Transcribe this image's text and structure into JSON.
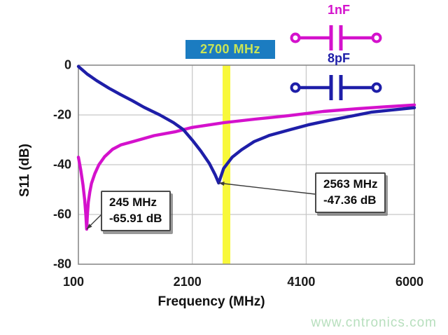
{
  "chart_data": {
    "type": "line",
    "xlabel": "Frequency (MHz)",
    "ylabel": "S11 (dB)",
    "xlim": [
      100,
      6000
    ],
    "ylim": [
      -80,
      0
    ],
    "x_ticks": [
      100,
      2100,
      4100,
      6000
    ],
    "y_ticks": [
      0,
      -20,
      -40,
      -60,
      -80
    ],
    "x_gridlines": [
      2100,
      4100
    ],
    "y_gridlines": [
      -20,
      -40,
      -60
    ],
    "grid_color": "#c6c6c6",
    "frame_color": "#8a8a8a",
    "marker_line": {
      "mhz": 2700,
      "color": "#f8f83a"
    },
    "series": [
      {
        "name": "1nF",
        "color": "#d411cc",
        "points": [
          [
            100,
            -37
          ],
          [
            140,
            -42
          ],
          [
            180,
            -48
          ],
          [
            210,
            -54
          ],
          [
            230,
            -60
          ],
          [
            245,
            -65.91
          ],
          [
            258,
            -60
          ],
          [
            275,
            -55
          ],
          [
            300,
            -51
          ],
          [
            330,
            -47.5
          ],
          [
            390,
            -43.5
          ],
          [
            460,
            -40
          ],
          [
            560,
            -36.8
          ],
          [
            700,
            -33.8
          ],
          [
            850,
            -32
          ],
          [
            1059,
            -30.7
          ],
          [
            1430,
            -28.3
          ],
          [
            1796,
            -26.8
          ],
          [
            2100,
            -25
          ],
          [
            2657,
            -23.1
          ],
          [
            3200,
            -21.7
          ],
          [
            3786,
            -20.3
          ],
          [
            4400,
            -18.6
          ],
          [
            5000,
            -17.5
          ],
          [
            5500,
            -16.7
          ],
          [
            6000,
            -16
          ]
        ]
      },
      {
        "name": "8pF",
        "color": "#1e1ea8",
        "points": [
          [
            100,
            -0.5
          ],
          [
            250,
            -3.5
          ],
          [
            420,
            -6.2
          ],
          [
            640,
            -9.3
          ],
          [
            840,
            -11.8
          ],
          [
            1050,
            -14.3
          ],
          [
            1250,
            -16.9
          ],
          [
            1530,
            -20
          ],
          [
            1770,
            -23.1
          ],
          [
            1943,
            -25.9
          ],
          [
            2100,
            -30.1
          ],
          [
            2250,
            -34.5
          ],
          [
            2400,
            -39.5
          ],
          [
            2500,
            -44
          ],
          [
            2563,
            -47.36
          ],
          [
            2650,
            -41.5
          ],
          [
            2800,
            -37
          ],
          [
            2965,
            -34
          ],
          [
            3186,
            -30.7
          ],
          [
            3456,
            -28.2
          ],
          [
            3825,
            -25.9
          ],
          [
            4132,
            -24
          ],
          [
            4500,
            -22.2
          ],
          [
            4930,
            -20.3
          ],
          [
            5238,
            -18.9
          ],
          [
            5606,
            -18
          ],
          [
            6000,
            -17.1
          ]
        ]
      }
    ],
    "annotations": [
      {
        "line1": "245 MHz",
        "line2": "-65.91 dB",
        "target_mhz": 245,
        "target_db": -65.91
      },
      {
        "line1": "2563 MHz",
        "line2": "-47.36 dB",
        "target_mhz": 2563,
        "target_db": -47.36
      }
    ]
  },
  "marker_label": {
    "text": "2700 MHz",
    "bg": "#1b7cc1",
    "fg": "#c9e556"
  },
  "schematics": [
    {
      "label": "1nF",
      "color": "#d411cc"
    },
    {
      "label": "8pF",
      "color": "#1e1ea8"
    }
  ],
  "watermark": {
    "text": "www.cntronics.com",
    "color": "#b7dfbd"
  }
}
